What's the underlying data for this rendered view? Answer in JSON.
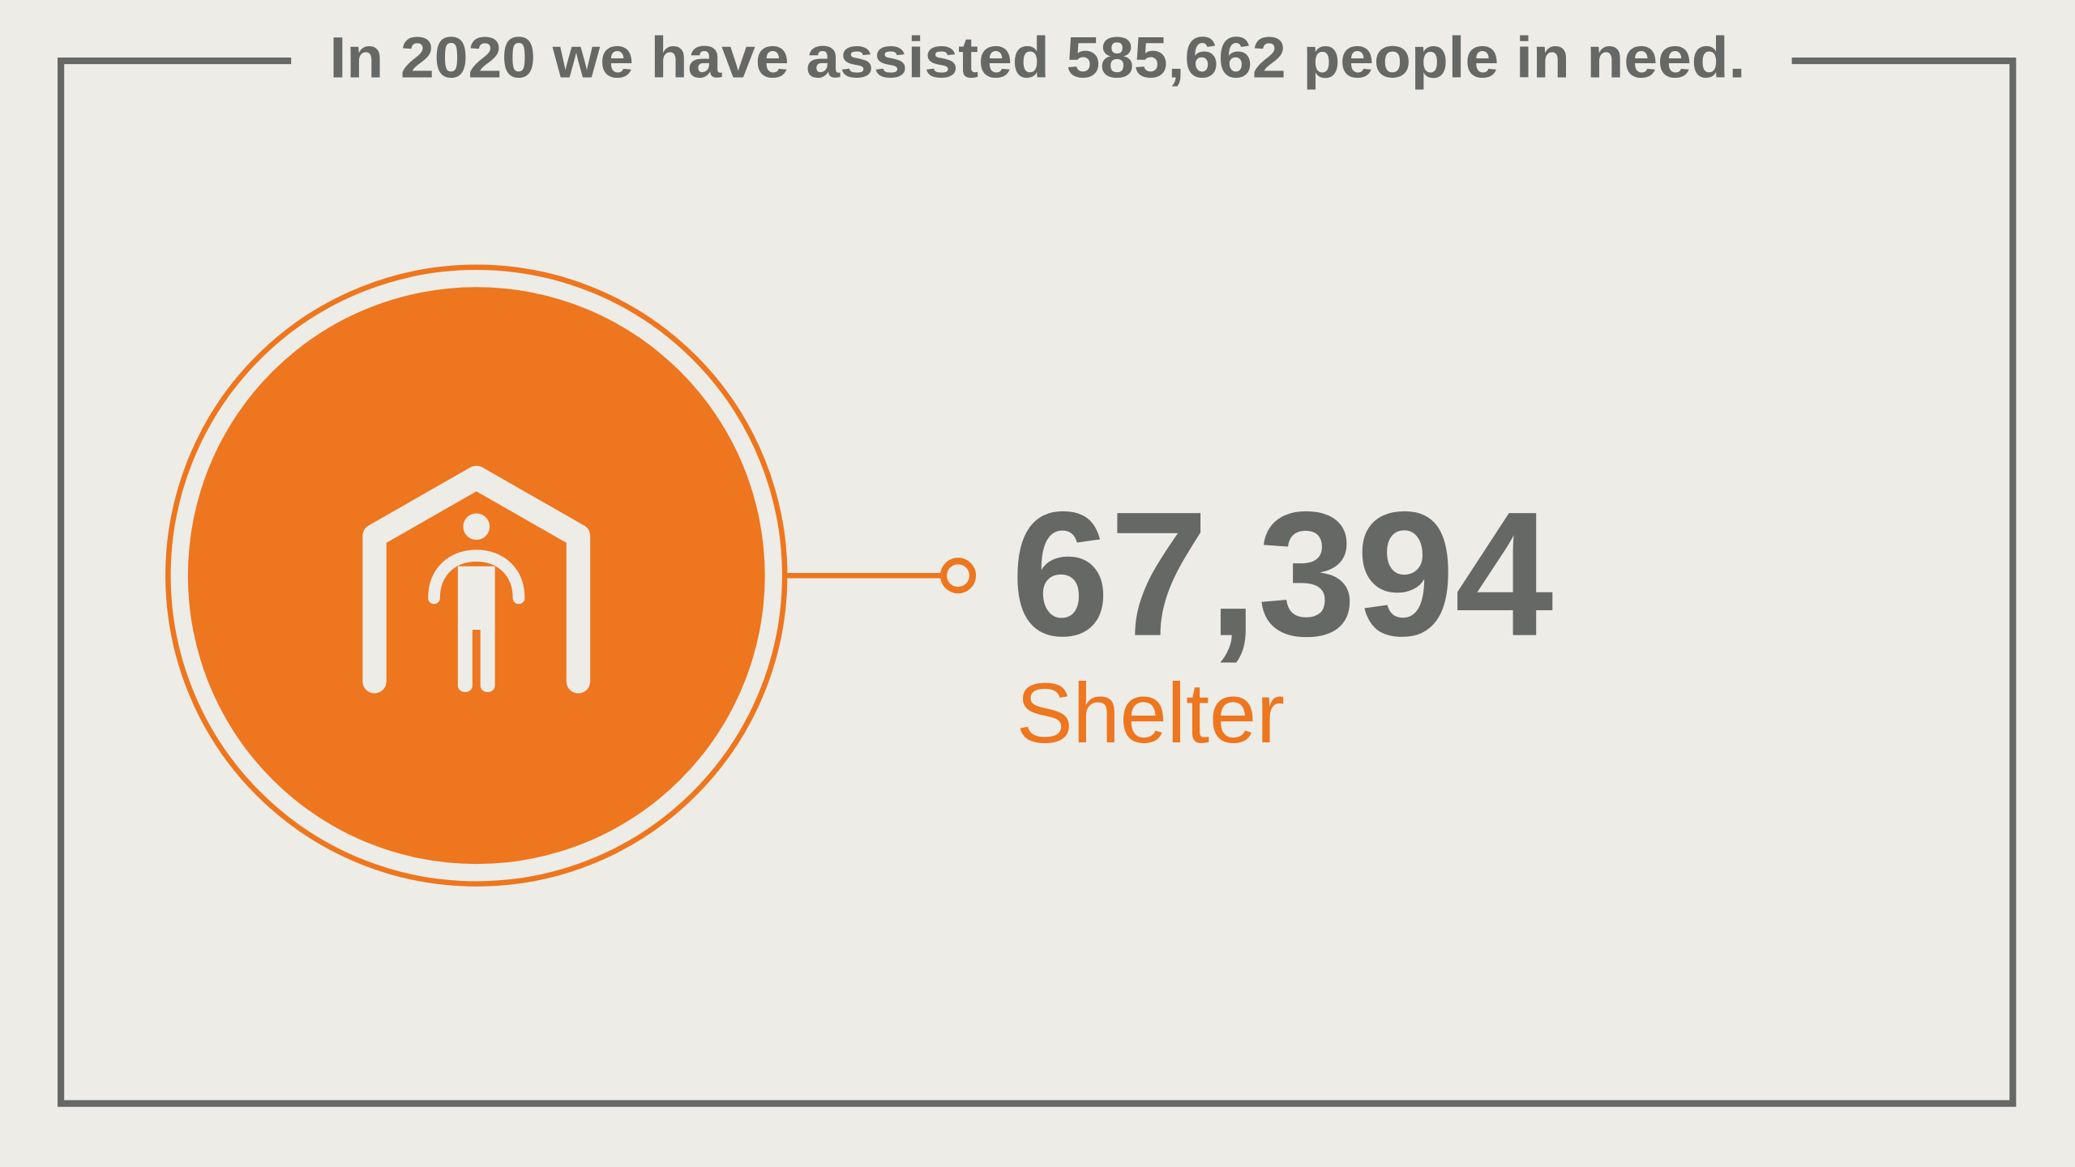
{
  "header": {
    "title": "In 2020 we have assisted 585,662 people in need."
  },
  "stat": {
    "value": "67,394",
    "label": "Shelter"
  }
}
